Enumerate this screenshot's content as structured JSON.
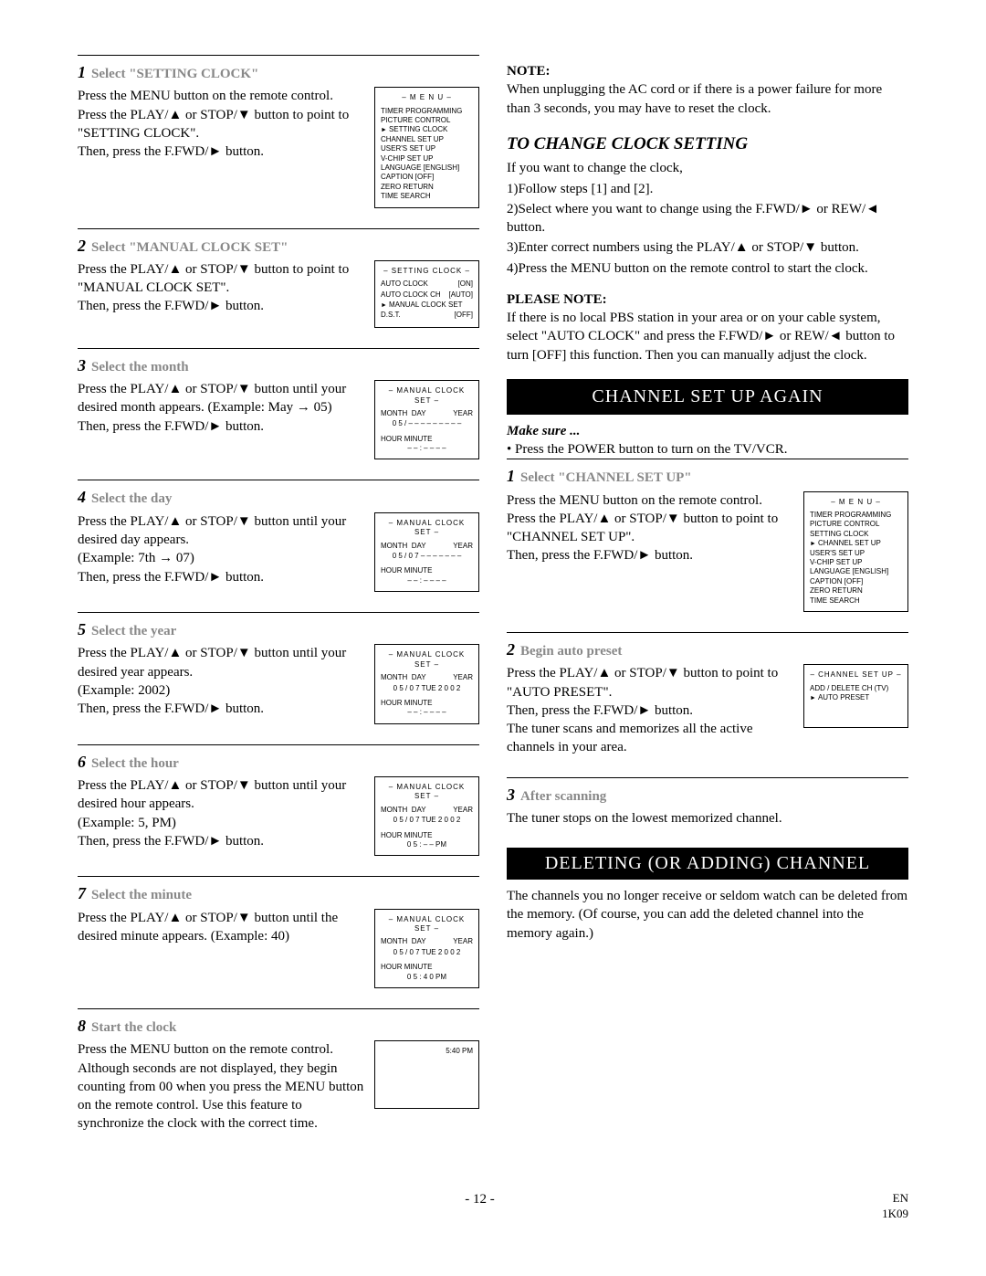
{
  "left": {
    "steps": [
      {
        "num": "1",
        "title": "Select \"SETTING CLOCK\"",
        "text": "Press the MENU button on the remote control.\nPress the PLAY/▲ or STOP/▼ button to point to \"SETTING CLOCK\".\nThen, press the F.FWD/► button.",
        "screen": {
          "title": "– M E N U –",
          "lines": [
            "TIMER PROGRAMMING",
            "PICTURE CONTROL",
            "► SETTING CLOCK",
            "CHANNEL SET UP",
            "USER'S SET UP",
            "V-CHIP SET UP",
            "LANGUAGE   [ENGLISH]",
            "CAPTION    [OFF]",
            "ZERO RETURN",
            "TIME SEARCH"
          ]
        }
      },
      {
        "num": "2",
        "title": "Select \"MANUAL CLOCK SET\"",
        "text": "Press the PLAY/▲ or STOP/▼ button to point to \"MANUAL CLOCK SET\".\nThen, press the F.FWD/► button.",
        "screen": {
          "title": "– SETTING CLOCK –",
          "rows": [
            [
              "AUTO CLOCK",
              "[ON]"
            ],
            [
              "AUTO CLOCK CH",
              "[AUTO]"
            ],
            [
              "► MANUAL CLOCK SET",
              ""
            ],
            [
              "D.S.T.",
              "[OFF]"
            ]
          ]
        }
      },
      {
        "num": "3",
        "title": "Select the month",
        "text": "Press the PLAY/▲ or STOP/▼ button until your desired month appears. (Example: May → 05)\nThen, press the F.FWD/► button.",
        "screen": {
          "title": "– MANUAL CLOCK SET –",
          "clock": {
            "month": "0 5",
            "day": "– –",
            "dow": "– – –",
            "year": "– – – –",
            "hour": "– –",
            "min": "– –",
            "ampm": "– –",
            "sel": "month"
          }
        }
      },
      {
        "num": "4",
        "title": "Select the day",
        "text": "Press the PLAY/▲ or STOP/▼ button until your desired day appears.\n(Example: 7th → 07)\nThen, press the F.FWD/► button.",
        "screen": {
          "title": "– MANUAL CLOCK SET –",
          "clock": {
            "month": "0 5",
            "day": "0 7",
            "dow": "– – –",
            "year": "– – – –",
            "hour": "– –",
            "min": "– –",
            "ampm": "– –",
            "sel": "day"
          }
        }
      },
      {
        "num": "5",
        "title": "Select the year",
        "text": "Press the PLAY/▲ or STOP/▼ button until your desired year appears.\n(Example: 2002)\nThen, press the F.FWD/► button.",
        "screen": {
          "title": "– MANUAL CLOCK SET –",
          "clock": {
            "month": "0 5",
            "day": "0 7",
            "dow": "TUE",
            "year": "2 0 0 2",
            "hour": "– –",
            "min": "– –",
            "ampm": "– –",
            "sel": "year"
          }
        }
      },
      {
        "num": "6",
        "title": "Select the hour",
        "text": "Press the PLAY/▲ or STOP/▼ button until your desired hour appears.\n(Example: 5, PM)\nThen, press the F.FWD/► button.",
        "screen": {
          "title": "– MANUAL CLOCK SET –",
          "clock": {
            "month": "0 5",
            "day": "0 7",
            "dow": "TUE",
            "year": "2 0 0 2",
            "hour": "0 5",
            "min": "– –",
            "ampm": "PM",
            "sel": "hour"
          }
        }
      },
      {
        "num": "7",
        "title": "Select the minute",
        "text": "Press the PLAY/▲ or STOP/▼ button until the desired minute appears. (Example: 40)",
        "screen": {
          "title": "– MANUAL CLOCK SET –",
          "clock": {
            "month": "0 5",
            "day": "0 7",
            "dow": "TUE",
            "year": "2 0 0 2",
            "hour": "0 5",
            "min": "4 0",
            "ampm": "PM",
            "sel": "min"
          }
        }
      },
      {
        "num": "8",
        "title": "Start the clock",
        "text": "Press the MENU button on the remote control.\nAlthough seconds are not displayed, they begin counting from 00 when you press the MENU button on the remote control. Use this feature to synchronize the clock with the correct time.",
        "screen": {
          "blank": true,
          "time": "5:40 PM"
        }
      }
    ]
  },
  "right": {
    "note_label": "NOTE:",
    "note_text": "When unplugging the AC cord or if there is a power failure for more than 3 seconds, you may have to reset the clock.",
    "change_head": "TO CHANGE CLOCK SETTING",
    "change_intro": "If you want to change the clock,",
    "change_list": [
      "1)Follow steps [1] and [2].",
      "2)Select where you want to change using the F.FWD/► or REW/◄ button.",
      "3)Enter correct numbers using the PLAY/▲ or STOP/▼ button.",
      "4)Press the MENU button on the remote control to start the clock."
    ],
    "please_note_label": "PLEASE NOTE:",
    "please_note_text": "If there is no local PBS station in your area or on your cable system, select \"AUTO CLOCK\" and press the F.FWD/► or REW/◄ button to turn [OFF] this function. Then you can manually adjust the clock.",
    "section_channel": "CHANNEL SET UP AGAIN",
    "makesure": "Make sure ...",
    "makesure_bullet": "Press the POWER button to turn on the TV/VCR.",
    "steps": [
      {
        "num": "1",
        "title": "Select \"CHANNEL SET UP\"",
        "text": "Press the MENU button on the remote control.\nPress the PLAY/▲ or STOP/▼ button to point to \"CHANNEL SET UP\".\nThen, press the F.FWD/► button.",
        "screen": {
          "title": "– M E N U –",
          "lines": [
            "TIMER PROGRAMMING",
            "PICTURE CONTROL",
            "SETTING CLOCK",
            "► CHANNEL SET UP",
            "USER'S SET UP",
            "V-CHIP SET UP",
            "LANGUAGE   [ENGLISH]",
            "CAPTION    [OFF]",
            "ZERO RETURN",
            "TIME SEARCH"
          ]
        }
      },
      {
        "num": "2",
        "title": "Begin auto preset",
        "text": "Press the PLAY/▲ or STOP/▼ button to point to \"AUTO PRESET\".\nThen, press the F.FWD/► button.\nThe tuner scans and memorizes all the active channels in your area.",
        "screen": {
          "title": "– CHANNEL SET UP –",
          "lines": [
            "ADD / DELETE CH (TV)",
            "► AUTO PRESET"
          ]
        }
      },
      {
        "num": "3",
        "title": "After scanning",
        "text": "The tuner stops on the lowest memorized channel.",
        "noscreen": true
      }
    ],
    "section_delete": "DELETING (OR ADDING) CHANNEL",
    "delete_text": "The channels you no longer receive or seldom watch can be deleted from the memory. (Of course, you can add the deleted channel into the memory again.)"
  },
  "footer": {
    "page": "- 12 -",
    "lang": "EN",
    "code": "1K09"
  }
}
